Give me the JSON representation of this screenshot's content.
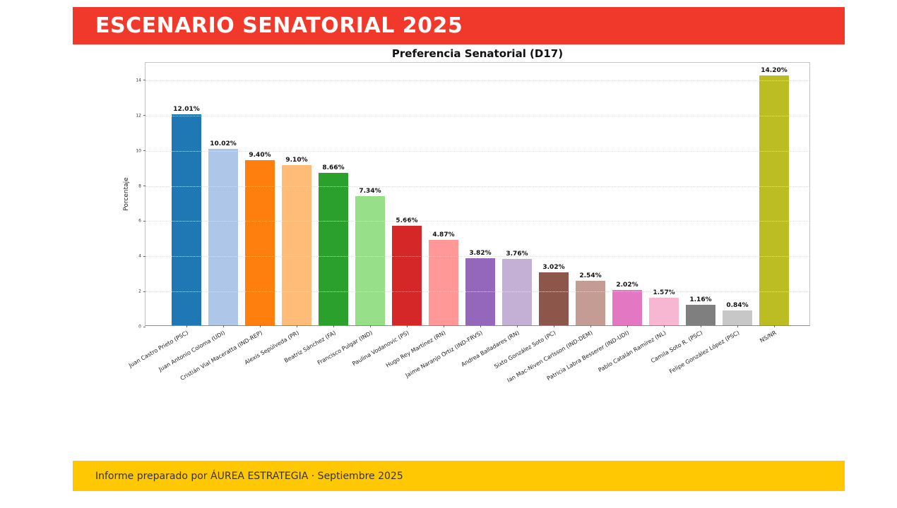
{
  "header": {
    "title": "ESCENARIO SENATORIAL 2025",
    "bg_color": "#f1392b",
    "text_color": "#ffffff"
  },
  "chart_data": {
    "type": "bar",
    "title": "Preferencia Senatorial (D17)",
    "xlabel": "",
    "ylabel": "Porcentaje",
    "ylim": [
      0,
      15
    ],
    "yticks": [
      0,
      2,
      4,
      6,
      8,
      10,
      12,
      14
    ],
    "grid": "horizontal dotted gridlines",
    "legend": "none",
    "categories": [
      "Juan Castro Prieto (PSC)",
      "Juan Antonio Coloma (UDI)",
      "Cristián Vial Maceratta (IND-REP)",
      "Alexis Sepúlveda (PR)",
      "Beatriz Sánchez (FA)",
      "Francisco Pulgar (IND)",
      "Paulina Vodanovic (PS)",
      "Hugo Rey Martínez (RN)",
      "Jaime Naranjo Ortiz (IND-FRVS)",
      "Andrea Balladares (RN)",
      "Sixto González Soto (PC)",
      "Ian Mac-Niven Carlsson (IND-DEM)",
      "Patricia Labra Besserer (IND-UDI)",
      "Pablo Catalán Ramírez (NL)",
      "Camila Soto R. (PSC)",
      "Felipe González López (PSC)",
      "NS/NR"
    ],
    "values": [
      12.01,
      10.02,
      9.4,
      9.1,
      8.66,
      7.34,
      5.66,
      4.87,
      3.82,
      3.76,
      3.02,
      2.54,
      2.02,
      1.57,
      1.16,
      0.84,
      14.2
    ],
    "value_labels": [
      "12.01%",
      "10.02%",
      "9.40%",
      "9.10%",
      "8.66%",
      "7.34%",
      "5.66%",
      "4.87%",
      "3.82%",
      "3.76%",
      "3.02%",
      "2.54%",
      "2.02%",
      "1.57%",
      "1.16%",
      "0.84%",
      "14.20%"
    ],
    "bar_colors": [
      "#1f77b4",
      "#aec7e8",
      "#ff7f0e",
      "#ffbb78",
      "#2ca02c",
      "#98df8a",
      "#d62728",
      "#ff9896",
      "#9467bd",
      "#c5b0d5",
      "#8c564b",
      "#c49c94",
      "#e377c2",
      "#f7b6d2",
      "#7f7f7f",
      "#c7c7c7",
      "#bcbd22"
    ]
  },
  "footer": {
    "text": "Informe preparado por ÁUREA ESTRATEGIA · Septiembre 2025",
    "bg_color": "#ffc800",
    "text_color": "#333333"
  }
}
